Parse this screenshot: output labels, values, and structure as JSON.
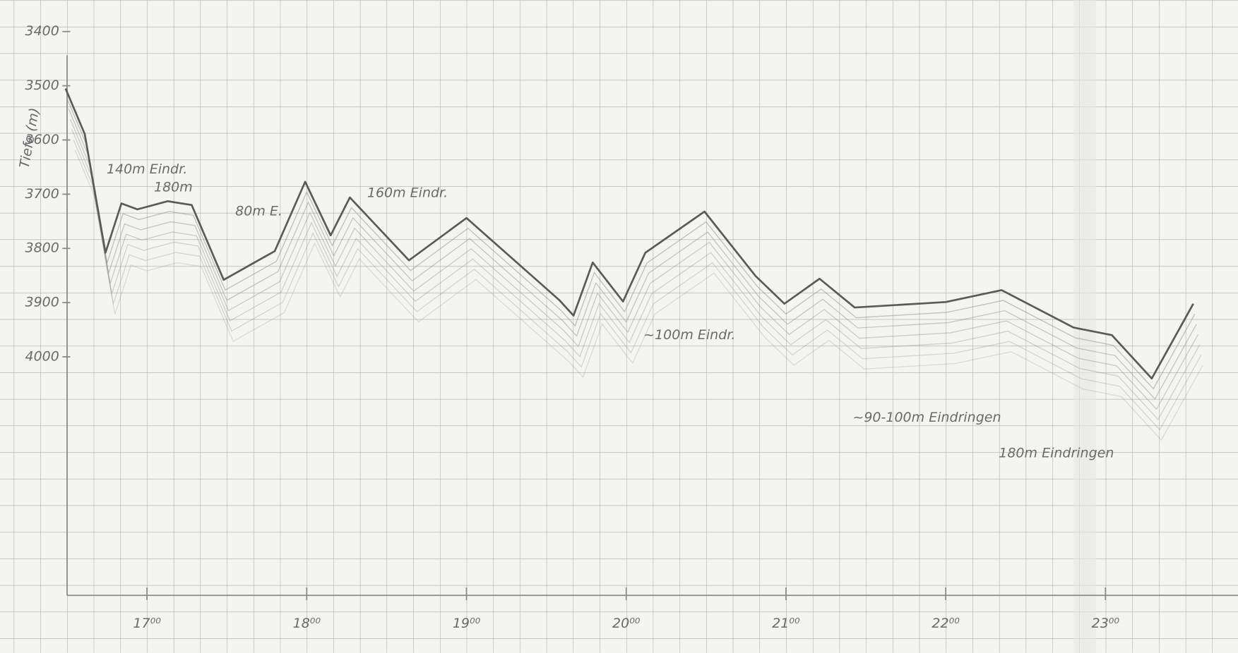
{
  "chart_data": {
    "type": "line",
    "y_label": "Tiefe (m)",
    "x": [
      16.49,
      16.61,
      16.74,
      16.84,
      16.94,
      17.13,
      17.28,
      17.48,
      17.8,
      17.99,
      18.15,
      18.27,
      18.64,
      19.0,
      19.58,
      19.67,
      19.79,
      19.98,
      20.12,
      20.49,
      20.81,
      20.99,
      21.21,
      21.43,
      22.0,
      22.35,
      22.8,
      23.04,
      23.29,
      23.55
    ],
    "series": [
      {
        "color": "#5a5a5a",
        "values": [
          3505,
          3589,
          3808,
          3717,
          3728,
          3713,
          3720,
          3858,
          3805,
          3677,
          3776,
          3706,
          3822,
          3744,
          3895,
          3924,
          3826,
          3898,
          3808,
          3732,
          3851,
          3902,
          3856,
          3909,
          3899,
          3877,
          3946,
          3960,
          4040,
          3902
        ]
      }
    ],
    "xlim": [
      16.5,
      23.8
    ],
    "xticks": [
      {
        "value": 17,
        "label": "17⁰⁰"
      },
      {
        "value": 18,
        "label": "18⁰⁰"
      },
      {
        "value": 19,
        "label": "19⁰⁰"
      },
      {
        "value": 20,
        "label": "20⁰⁰"
      },
      {
        "value": 21,
        "label": "21⁰⁰"
      },
      {
        "value": 22,
        "label": "22⁰⁰"
      },
      {
        "value": 23,
        "label": "23⁰⁰"
      }
    ],
    "ylim": [
      3342,
      4440
    ],
    "y_inverted": true,
    "yticks": [
      3400,
      3500,
      3600,
      3700,
      3800,
      3900,
      4000
    ],
    "grid": true,
    "annotations": [
      "140m Eindr.",
      "180m",
      "80m E.",
      "160m Eindr.",
      "~100m Eindr.",
      "~90-100m Eindringen",
      "180m Eindringen"
    ]
  }
}
